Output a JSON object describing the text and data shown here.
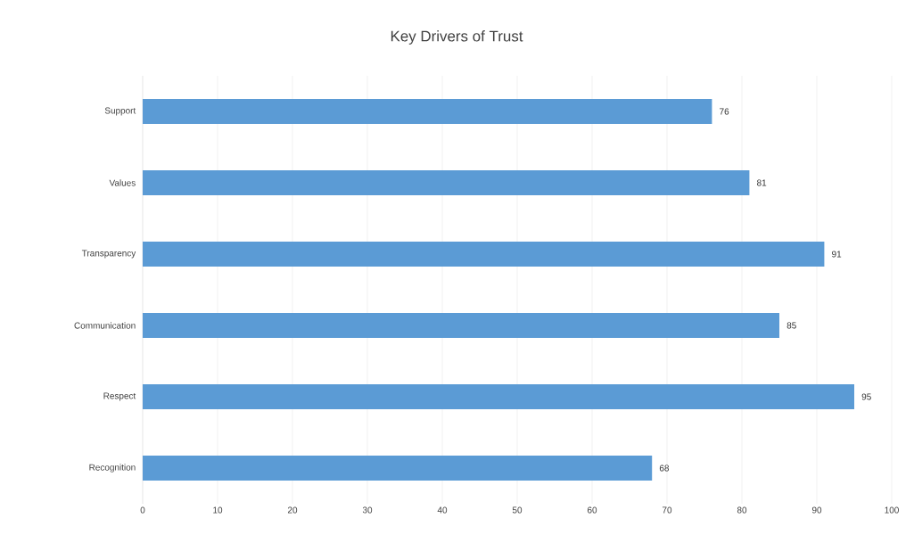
{
  "chart_data": {
    "type": "bar",
    "orientation": "horizontal",
    "title": "Key Drivers of Trust",
    "categories": [
      "Support",
      "Values",
      "Transparency",
      "Communication",
      "Respect",
      "Recognition"
    ],
    "values": [
      76,
      81,
      91,
      85,
      95,
      68
    ],
    "color": "#5b9bd5",
    "xlim": [
      0,
      100
    ],
    "xticks": [
      0,
      10,
      20,
      30,
      40,
      50,
      60,
      70,
      80,
      90,
      100
    ],
    "grid": "x",
    "data_labels": true
  }
}
